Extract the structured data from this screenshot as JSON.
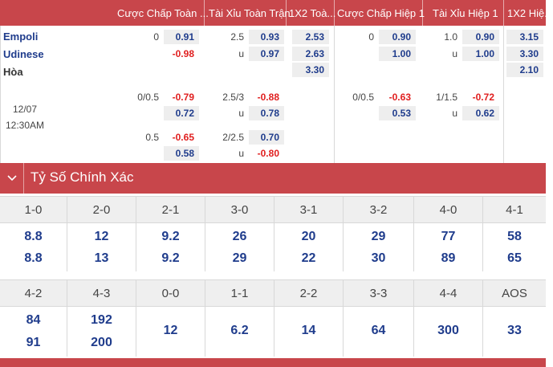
{
  "header": {
    "columns": [
      "Cược Chấp Toàn ...",
      "Tài Xỉu Toàn Trận",
      "1X2 Toà...",
      "Cược Chấp Hiệp 1",
      "Tài Xỉu Hiệp 1",
      "1X2 Hiệ..."
    ]
  },
  "match": {
    "home": "Empoli",
    "away": "Udinese",
    "draw": "Hòa",
    "date": "12/07",
    "time": "12:30AM"
  },
  "odds": {
    "main": {
      "ah_line": "0",
      "ah_home": "0.91",
      "ah_away": "-0.98",
      "ou_line": "2.5",
      "ou_over": "0.93",
      "ou_under_label": "u",
      "ou_under": "0.97",
      "x12_home": "2.53",
      "x12_away": "2.63",
      "x12_draw": "3.30",
      "h1_ah_line": "0",
      "h1_ah_home": "0.90",
      "h1_ah_away": "1.00",
      "h1_ou_line": "1.0",
      "h1_ou_over": "0.90",
      "h1_ou_under_label": "u",
      "h1_ou_under": "1.00",
      "h1_x12_home": "3.15",
      "h1_x12_away": "3.30",
      "h1_x12_draw": "2.10"
    },
    "alt1": {
      "ah_line": "0/0.5",
      "ah_home": "-0.79",
      "ah_away": "0.72",
      "ou_line": "2.5/3",
      "ou_over": "-0.88",
      "ou_under_label": "u",
      "ou_under": "0.78",
      "h1_ah_line": "0/0.5",
      "h1_ah_home": "-0.63",
      "h1_ah_away": "0.53",
      "h1_ou_line": "1/1.5",
      "h1_ou_over": "-0.72",
      "h1_ou_under_label": "u",
      "h1_ou_under": "0.62"
    },
    "alt2": {
      "ah_line": "0.5",
      "ah_home": "-0.65",
      "ah_away": "0.58",
      "ou_line": "2/2.5",
      "ou_over": "0.70",
      "ou_under_label": "u",
      "ou_under": "-0.80"
    }
  },
  "exact_score": {
    "title": "Tỷ Số Chính Xác",
    "row1": {
      "scores": [
        "1-0",
        "2-0",
        "2-1",
        "3-0",
        "3-1",
        "3-2",
        "4-0",
        "4-1"
      ],
      "home": [
        "8.8",
        "12",
        "9.2",
        "26",
        "20",
        "29",
        "77",
        "58"
      ],
      "away": [
        "8.8",
        "13",
        "9.2",
        "29",
        "22",
        "30",
        "89",
        "65"
      ]
    },
    "row2": {
      "scores": [
        "4-2",
        "4-3",
        "0-0",
        "1-1",
        "2-2",
        "3-3",
        "4-4",
        "AOS"
      ],
      "home": [
        "84",
        "192"
      ],
      "away": [
        "91",
        "200"
      ],
      "single": [
        "12",
        "6.2",
        "14",
        "64",
        "300",
        "33"
      ]
    }
  },
  "colors": {
    "accent": "#c8464b",
    "odds_blue": "#1f3c8c",
    "odds_red": "#e01e1e"
  }
}
